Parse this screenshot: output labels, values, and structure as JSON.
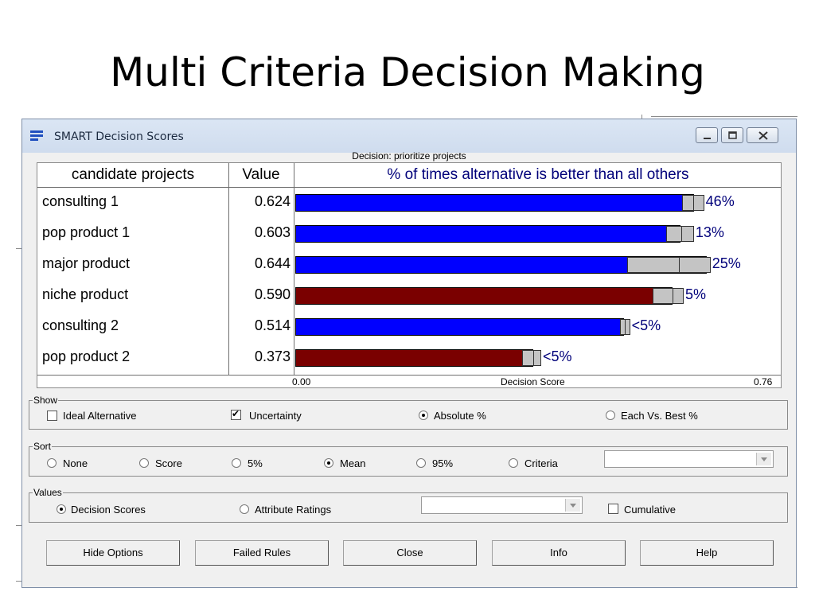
{
  "slide": {
    "title": "Multi Criteria Decision Making"
  },
  "window": {
    "title": "SMART  Decision Scores",
    "decision_label": "Decision: prioritize projects",
    "controls": [
      "minimize",
      "maximize",
      "close"
    ]
  },
  "table": {
    "headers": {
      "name": "candidate projects",
      "value": "Value",
      "bar": "% of times alternative is better than all others"
    },
    "axis": {
      "min_label": "0.00",
      "title": "Decision Score",
      "max_label": "0.76"
    }
  },
  "chart_data": {
    "type": "bar",
    "orientation": "horizontal",
    "x_range": [
      0,
      0.76
    ],
    "xlabel": "Decision Score",
    "categories": [
      "consulting 1",
      "pop product 1",
      "major product",
      "niche product",
      "consulting 2",
      "pop product 2"
    ],
    "values": [
      0.624,
      0.603,
      0.644,
      0.59,
      0.514,
      0.373
    ],
    "value_labels": [
      "0.624",
      "0.603",
      "0.644",
      "0.590",
      "0.514",
      "0.373"
    ],
    "bar_colors": [
      "#0000ff",
      "#0000ff",
      "#0000ff",
      "#7a0000",
      "#0000ff",
      "#7a0000"
    ],
    "uncertainty": [
      {
        "low": 0.605,
        "mid": 0.623,
        "high": 0.64
      },
      {
        "low": 0.58,
        "mid": 0.604,
        "high": 0.624
      },
      {
        "low": 0.52,
        "mid": 0.6,
        "high": 0.65
      },
      {
        "low": 0.56,
        "mid": 0.59,
        "high": 0.608
      },
      {
        "low": 0.508,
        "mid": 0.516,
        "high": 0.524
      },
      {
        "low": 0.355,
        "mid": 0.373,
        "high": 0.385
      }
    ],
    "percent_labels": [
      "46%",
      "13%",
      "25%",
      "5%",
      "<5%",
      "<5%"
    ]
  },
  "show": {
    "legend": "Show",
    "ideal": {
      "label": "Ideal Alternative",
      "checked": false
    },
    "uncertainty": {
      "label": "Uncertainty",
      "checked": true
    },
    "absolute": {
      "label": "Absolute %",
      "selected": true
    },
    "each_vs_best": {
      "label": "Each Vs. Best %",
      "selected": false
    }
  },
  "sort": {
    "legend": "Sort",
    "options": [
      "None",
      "Score",
      "5%",
      "Mean",
      "95%",
      "Criteria"
    ],
    "selected": "Mean",
    "combo_value": ""
  },
  "values": {
    "legend": "Values",
    "decision_scores": {
      "label": "Decision Scores",
      "selected": true
    },
    "attribute_ratings": {
      "label": "Attribute Ratings",
      "selected": false
    },
    "combo_value": "",
    "cumulative": {
      "label": "Cumulative",
      "checked": false
    }
  },
  "buttons": {
    "hide_options": "Hide Options",
    "failed_rules": "Failed Rules",
    "close": "Close",
    "info": "Info",
    "help": "Help"
  }
}
